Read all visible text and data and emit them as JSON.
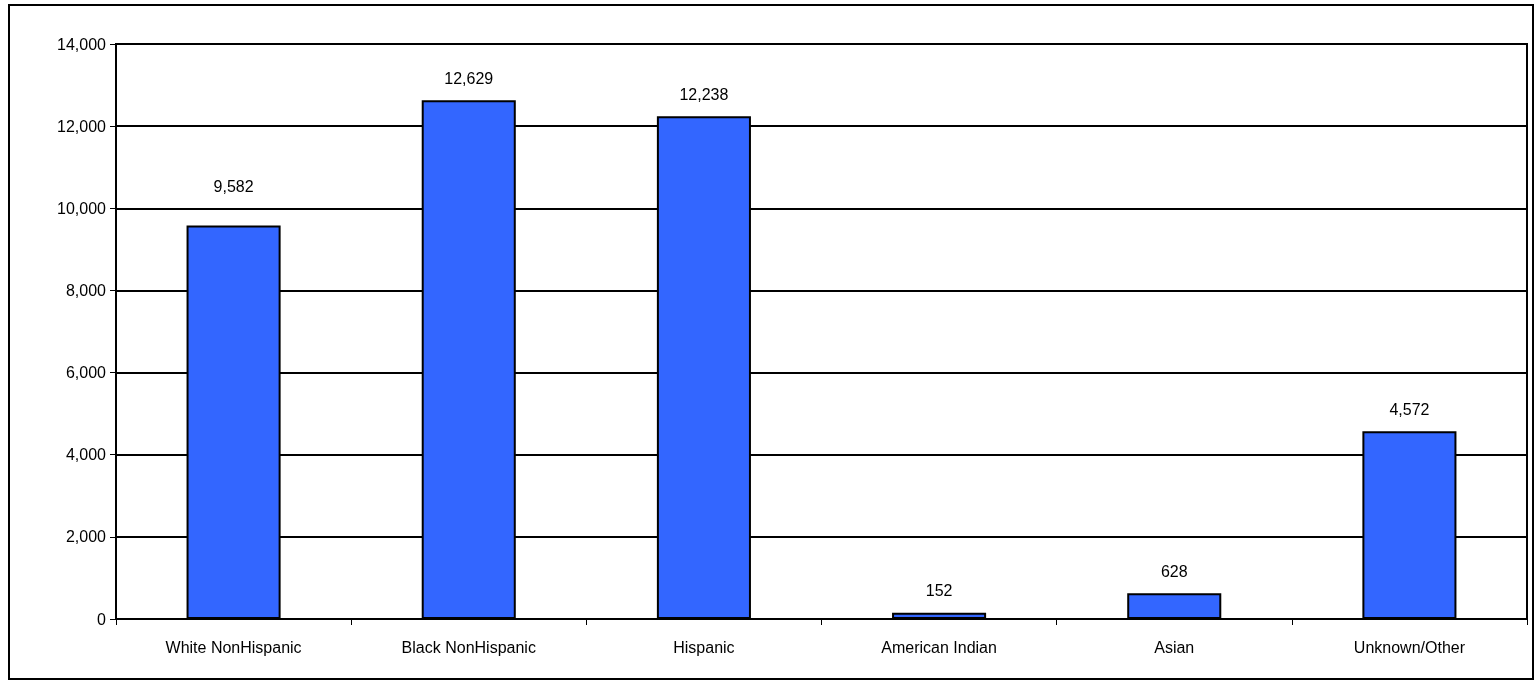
{
  "chart_data": {
    "type": "bar",
    "categories": [
      "White NonHispanic",
      "Black NonHispanic",
      "Hispanic",
      "American Indian",
      "Asian",
      "Unknown/Other"
    ],
    "values": [
      9582,
      12629,
      12238,
      152,
      628,
      4572
    ],
    "value_labels": [
      "9,582",
      "12,629",
      "12,238",
      "152",
      "628",
      "4,572"
    ],
    "color": "#3366ff",
    "ylim": [
      0,
      14000
    ],
    "yticks": [
      {
        "value": 0,
        "label": "0"
      },
      {
        "value": 2000,
        "label": "2,000"
      },
      {
        "value": 4000,
        "label": "4,000"
      },
      {
        "value": 6000,
        "label": "6,000"
      },
      {
        "value": 8000,
        "label": "8,000"
      },
      {
        "value": 10000,
        "label": "10,000"
      },
      {
        "value": 12000,
        "label": "12,000"
      },
      {
        "value": 14000,
        "label": "14,000"
      }
    ],
    "grid": "y"
  }
}
